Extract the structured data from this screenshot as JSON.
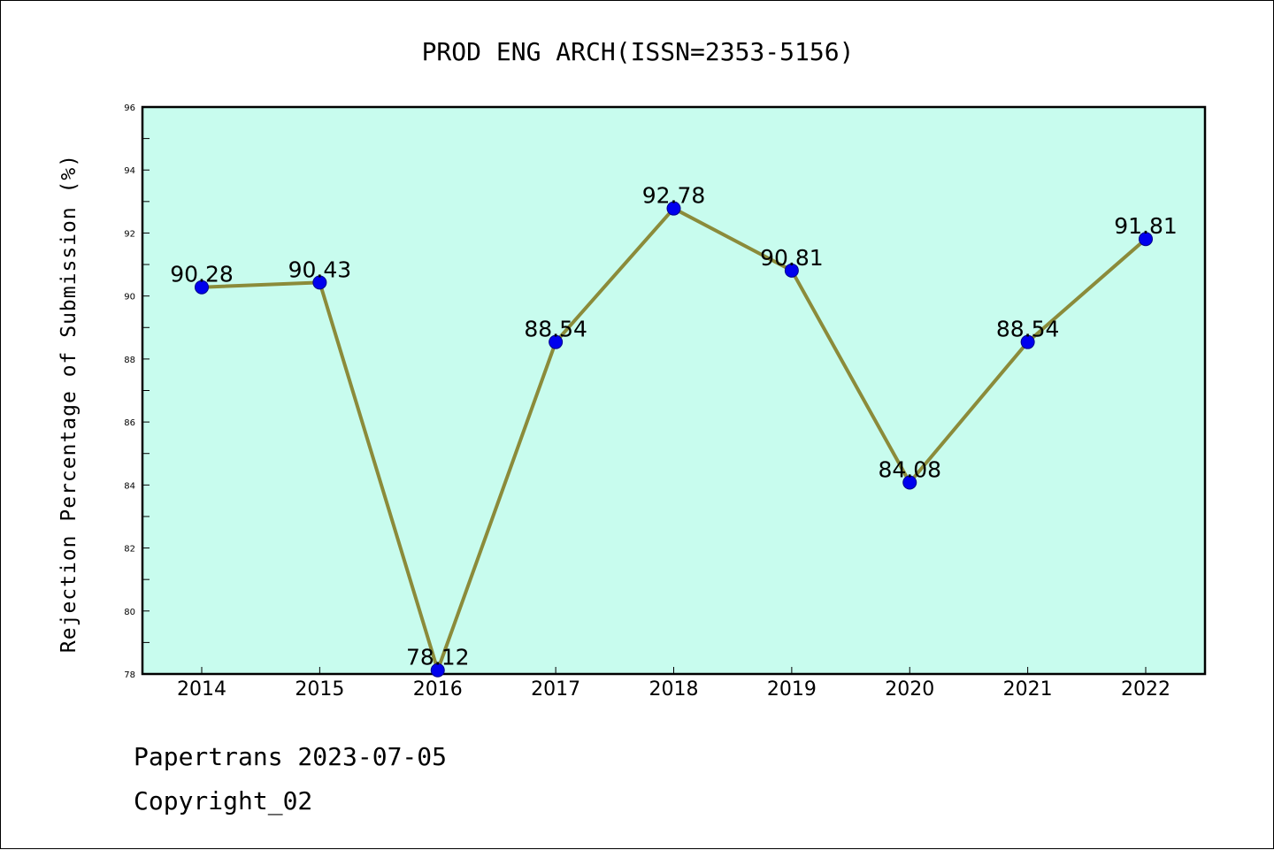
{
  "chart_data": {
    "type": "line",
    "title": "PROD ENG ARCH(ISSN=2353-5156)",
    "xlabel": "",
    "ylabel": "Rejection Percentage of Submission (%)",
    "categories": [
      "2014",
      "2015",
      "2016",
      "2017",
      "2018",
      "2019",
      "2020",
      "2021",
      "2022"
    ],
    "series": [
      {
        "values": [
          90.28,
          90.43,
          78.12,
          88.54,
          92.78,
          90.81,
          84.08,
          88.54,
          91.81
        ],
        "data_labels": [
          "90.28",
          "90.43",
          "78.12",
          "88.54",
          "92.78",
          "90.81",
          "84.08",
          "88.54",
          "91.81"
        ]
      }
    ],
    "ylim": [
      78,
      96
    ],
    "yticks": [
      78,
      80,
      82,
      84,
      86,
      88,
      90,
      92,
      94,
      96
    ],
    "grid": false,
    "legend": "none",
    "colors": {
      "plot_background": "#c8fcee",
      "line": "#8b8b3a",
      "marker": "#0000ee",
      "axes": "#000000"
    }
  },
  "footer": {
    "source": "Papertrans 2023-07-05",
    "copyright": "Copyright_02"
  }
}
